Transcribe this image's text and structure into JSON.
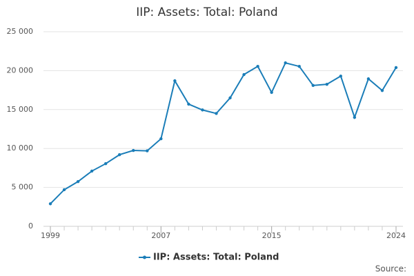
{
  "chart_data": {
    "type": "line",
    "title": "IIP: Assets: Total: Poland",
    "x": [
      1999,
      2000,
      2001,
      2002,
      2003,
      2004,
      2005,
      2006,
      2007,
      2008,
      2009,
      2010,
      2011,
      2012,
      2013,
      2014,
      2015,
      2016,
      2017,
      2018,
      2019,
      2020,
      2021,
      2022,
      2023,
      2024
    ],
    "series": [
      {
        "name": "IIP: Assets: Total: Poland",
        "color": "#1a7db8",
        "values": [
          2900,
          4700,
          5750,
          7100,
          8050,
          9200,
          9750,
          9700,
          11250,
          18700,
          15700,
          14950,
          14500,
          16500,
          19500,
          20550,
          17200,
          21000,
          20550,
          18100,
          18250,
          19300,
          14000,
          18950,
          17450,
          20400
        ]
      }
    ],
    "xlim": [
      1998.5,
      2024.5
    ],
    "xticks": [
      1999,
      2007,
      2015,
      2024
    ],
    "ylim": [
      0,
      25000
    ],
    "yticks": [
      0,
      {
        "value": 5000,
        "label": "5 000"
      },
      {
        "value": 10000,
        "label": "10 000"
      },
      {
        "value": 15000,
        "label": "15 000"
      },
      {
        "value": 20000,
        "label": "20 000"
      },
      {
        "value": 25000,
        "label": "25 000"
      }
    ],
    "grid": true,
    "legend": "bottom",
    "source": "Source:"
  }
}
